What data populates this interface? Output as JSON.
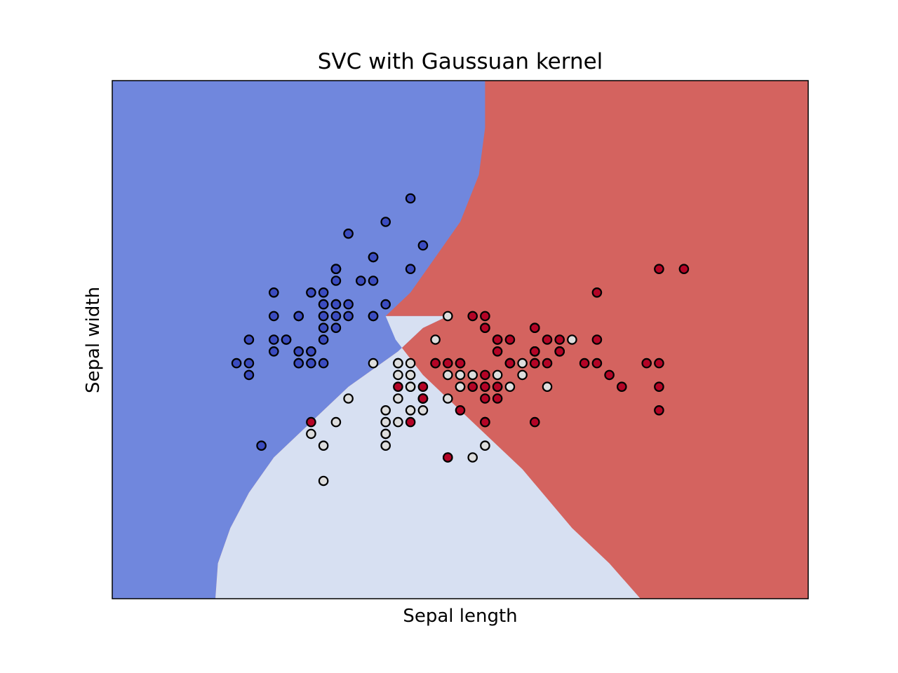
{
  "chart_data": {
    "type": "scatter",
    "title": "SVC with Gaussuan kernel",
    "xlabel": "Sepal length",
    "ylabel": "Sepal width",
    "xlim": [
      3.3,
      8.9
    ],
    "ylim": [
      1.0,
      5.4
    ],
    "xticks": [],
    "yticks": [],
    "grid": false,
    "colors": {
      "class_0": "#3b4cc0",
      "class_1": "#dddddd",
      "class_2": "#b40426",
      "region_0": "#7087dd",
      "region_1": "#d7e0f2",
      "region_2": "#d4635f",
      "edge": "#000000"
    },
    "decision_regions": {
      "region_0_upper_boundary": [
        [
          7.8,
          1.0
        ],
        [
          7.83,
          1.05
        ],
        [
          7.7,
          1.3
        ],
        [
          7.5,
          1.6
        ],
        [
          7.3,
          1.9
        ],
        [
          7.1,
          2.2
        ],
        [
          6.8,
          2.5
        ],
        [
          6.5,
          2.8
        ],
        [
          6.3,
          3.1
        ],
        [
          6.25,
          3.4
        ],
        [
          6.0,
          3.4
        ],
        [
          5.8,
          3.3
        ],
        [
          5.6,
          3.1
        ],
        [
          5.2,
          2.8
        ],
        [
          4.9,
          2.5
        ],
        [
          4.6,
          2.2
        ],
        [
          4.4,
          1.9
        ],
        [
          4.25,
          1.6
        ],
        [
          4.15,
          1.3
        ],
        [
          4.13,
          1.0
        ]
      ],
      "region_2_boundary": [
        [
          6.3,
          5.4
        ],
        [
          6.3,
          5.0
        ],
        [
          6.25,
          4.6
        ],
        [
          6.1,
          4.2
        ],
        [
          5.9,
          3.9
        ],
        [
          5.7,
          3.6
        ],
        [
          5.5,
          3.4
        ],
        [
          5.58,
          3.2
        ],
        [
          5.8,
          2.9
        ],
        [
          6.2,
          2.5
        ],
        [
          6.6,
          2.1
        ],
        [
          7.0,
          1.6
        ],
        [
          7.3,
          1.3
        ],
        [
          7.55,
          1.0
        ]
      ]
    },
    "series": [
      {
        "points": [
          [
            5.1,
            3.5
          ],
          [
            4.9,
            3.0
          ],
          [
            4.7,
            3.2
          ],
          [
            4.6,
            3.1
          ],
          [
            5.0,
            3.6
          ],
          [
            5.4,
            3.9
          ],
          [
            4.6,
            3.4
          ],
          [
            5.0,
            3.4
          ],
          [
            4.4,
            2.9
          ],
          [
            4.9,
            3.1
          ],
          [
            5.4,
            3.7
          ],
          [
            4.8,
            3.4
          ],
          [
            4.8,
            3.0
          ],
          [
            4.3,
            3.0
          ],
          [
            5.8,
            4.0
          ],
          [
            5.7,
            4.4
          ],
          [
            5.4,
            3.9
          ],
          [
            5.1,
            3.5
          ],
          [
            5.7,
            3.8
          ],
          [
            5.1,
            3.8
          ],
          [
            5.4,
            3.4
          ],
          [
            5.1,
            3.7
          ],
          [
            4.6,
            3.6
          ],
          [
            5.1,
            3.3
          ],
          [
            4.8,
            3.4
          ],
          [
            5.0,
            3.0
          ],
          [
            5.0,
            3.4
          ],
          [
            5.2,
            3.5
          ],
          [
            5.2,
            3.4
          ],
          [
            4.7,
            3.2
          ],
          [
            4.8,
            3.1
          ],
          [
            5.4,
            3.4
          ],
          [
            5.2,
            4.1
          ],
          [
            5.5,
            4.2
          ],
          [
            4.9,
            3.1
          ],
          [
            5.0,
            3.2
          ],
          [
            5.5,
            3.5
          ],
          [
            4.9,
            3.6
          ],
          [
            4.4,
            3.0
          ],
          [
            5.1,
            3.4
          ],
          [
            5.0,
            3.5
          ],
          [
            4.5,
            2.3
          ],
          [
            4.4,
            3.2
          ],
          [
            5.0,
            3.5
          ],
          [
            5.1,
            3.8
          ],
          [
            4.8,
            3.0
          ],
          [
            5.1,
            3.8
          ],
          [
            4.6,
            3.2
          ],
          [
            5.3,
            3.7
          ],
          [
            5.0,
            3.3
          ]
        ]
      },
      {
        "points": [
          [
            7.0,
            3.2
          ],
          [
            6.4,
            3.2
          ],
          [
            6.9,
            3.1
          ],
          [
            5.5,
            2.3
          ],
          [
            6.5,
            2.8
          ],
          [
            5.7,
            2.8
          ],
          [
            6.3,
            3.3
          ],
          [
            4.9,
            2.4
          ],
          [
            6.6,
            2.9
          ],
          [
            5.2,
            2.7
          ],
          [
            5.0,
            2.0
          ],
          [
            5.9,
            3.0
          ],
          [
            6.0,
            2.2
          ],
          [
            6.1,
            2.9
          ],
          [
            5.6,
            2.9
          ],
          [
            6.7,
            3.1
          ],
          [
            5.6,
            3.0
          ],
          [
            5.8,
            2.7
          ],
          [
            6.2,
            2.2
          ],
          [
            5.6,
            2.5
          ],
          [
            5.9,
            3.2
          ],
          [
            6.1,
            2.8
          ],
          [
            6.3,
            2.5
          ],
          [
            6.1,
            2.8
          ],
          [
            6.4,
            2.9
          ],
          [
            6.6,
            3.0
          ],
          [
            6.8,
            2.8
          ],
          [
            6.7,
            3.0
          ],
          [
            6.0,
            2.9
          ],
          [
            5.7,
            2.6
          ],
          [
            5.5,
            2.4
          ],
          [
            5.5,
            2.4
          ],
          [
            5.8,
            2.7
          ],
          [
            6.0,
            2.7
          ],
          [
            5.4,
            3.0
          ],
          [
            6.0,
            3.4
          ],
          [
            6.7,
            3.1
          ],
          [
            6.3,
            2.3
          ],
          [
            5.6,
            3.0
          ],
          [
            5.5,
            2.5
          ],
          [
            5.5,
            2.6
          ],
          [
            6.1,
            3.0
          ],
          [
            5.8,
            2.6
          ],
          [
            5.0,
            2.3
          ],
          [
            5.6,
            2.7
          ],
          [
            5.7,
            3.0
          ],
          [
            5.7,
            2.9
          ],
          [
            6.2,
            2.9
          ],
          [
            5.1,
            2.5
          ],
          [
            5.7,
            2.8
          ]
        ]
      },
      {
        "points": [
          [
            6.3,
            3.3
          ],
          [
            5.8,
            2.7
          ],
          [
            7.1,
            3.0
          ],
          [
            6.3,
            2.9
          ],
          [
            6.5,
            3.0
          ],
          [
            7.6,
            3.0
          ],
          [
            4.9,
            2.5
          ],
          [
            7.3,
            2.9
          ],
          [
            6.7,
            2.5
          ],
          [
            7.2,
            3.6
          ],
          [
            6.5,
            3.2
          ],
          [
            6.4,
            2.7
          ],
          [
            6.8,
            3.0
          ],
          [
            5.7,
            2.5
          ],
          [
            5.8,
            2.8
          ],
          [
            6.4,
            3.2
          ],
          [
            6.5,
            3.0
          ],
          [
            7.7,
            3.8
          ],
          [
            7.7,
            2.6
          ],
          [
            6.0,
            2.2
          ],
          [
            6.9,
            3.2
          ],
          [
            5.6,
            2.8
          ],
          [
            7.7,
            2.8
          ],
          [
            6.3,
            2.7
          ],
          [
            6.7,
            3.3
          ],
          [
            7.2,
            3.2
          ],
          [
            6.2,
            2.8
          ],
          [
            6.1,
            3.0
          ],
          [
            6.4,
            2.8
          ],
          [
            7.2,
            3.0
          ],
          [
            7.4,
            2.8
          ],
          [
            7.9,
            3.8
          ],
          [
            6.4,
            2.8
          ],
          [
            6.3,
            2.8
          ],
          [
            6.1,
            2.6
          ],
          [
            7.7,
            3.0
          ],
          [
            6.3,
            3.4
          ],
          [
            6.4,
            3.1
          ],
          [
            6.0,
            3.0
          ],
          [
            6.9,
            3.1
          ],
          [
            6.7,
            3.1
          ],
          [
            6.9,
            3.1
          ],
          [
            5.8,
            2.7
          ],
          [
            6.8,
            3.2
          ],
          [
            6.7,
            3.3
          ],
          [
            6.7,
            3.0
          ],
          [
            6.3,
            2.5
          ],
          [
            6.5,
            3.0
          ],
          [
            6.2,
            3.4
          ],
          [
            5.9,
            3.0
          ]
        ]
      }
    ]
  }
}
